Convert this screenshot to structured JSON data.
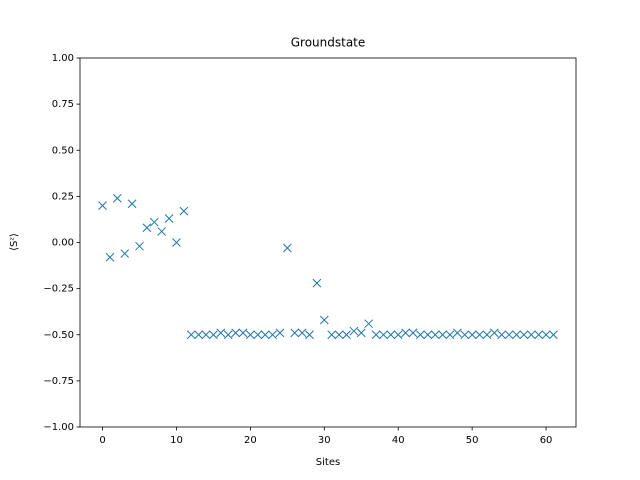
{
  "chart_data": {
    "type": "scatter",
    "title": "Groundstate",
    "xlabel": "Sites",
    "ylabel": "⟨Sᶻ⟩",
    "marker": "x",
    "color": "#1f77b4",
    "x": [
      0,
      1,
      2,
      3,
      4,
      5,
      6,
      7,
      8,
      9,
      10,
      11,
      12,
      13,
      14,
      15,
      16,
      17,
      18,
      19,
      20,
      21,
      22,
      23,
      24,
      25,
      26,
      27,
      28,
      29,
      30,
      31,
      32,
      33,
      34,
      35,
      36,
      37,
      38,
      39,
      40,
      41,
      42,
      43,
      44,
      45,
      46,
      47,
      48,
      49,
      50,
      51,
      52,
      53,
      54,
      55,
      56,
      57,
      58,
      59,
      60,
      61
    ],
    "values": [
      0.2,
      -0.08,
      0.24,
      -0.06,
      0.21,
      -0.02,
      0.08,
      0.11,
      0.06,
      0.13,
      0.0,
      0.17,
      -0.5,
      -0.5,
      -0.5,
      -0.5,
      -0.49,
      -0.5,
      -0.49,
      -0.49,
      -0.5,
      -0.5,
      -0.5,
      -0.5,
      -0.49,
      -0.03,
      -0.49,
      -0.49,
      -0.5,
      -0.22,
      -0.42,
      -0.5,
      -0.5,
      -0.5,
      -0.48,
      -0.49,
      -0.44,
      -0.5,
      -0.5,
      -0.5,
      -0.5,
      -0.49,
      -0.49,
      -0.5,
      -0.5,
      -0.5,
      -0.5,
      -0.5,
      -0.49,
      -0.5,
      -0.5,
      -0.5,
      -0.5,
      -0.49,
      -0.5,
      -0.5,
      -0.5,
      -0.5,
      -0.5,
      -0.5,
      -0.5,
      -0.5
    ],
    "xlim": [
      -3.05,
      64.05
    ],
    "xticks": [
      0,
      10,
      20,
      30,
      40,
      50,
      60
    ],
    "ylim": [
      -1,
      1
    ],
    "yticks": [
      {
        "value": -1,
        "label": "−1.00"
      },
      {
        "value": -0.75,
        "label": "−0.75"
      },
      {
        "value": -0.5,
        "label": "−0.50"
      },
      {
        "value": -0.25,
        "label": "−0.25"
      },
      {
        "value": 0,
        "label": "0.00"
      },
      {
        "value": 0.25,
        "label": "0.25"
      },
      {
        "value": 0.5,
        "label": "0.50"
      },
      {
        "value": 0.75,
        "label": "0.75"
      },
      {
        "value": 1,
        "label": "1.00"
      }
    ]
  }
}
